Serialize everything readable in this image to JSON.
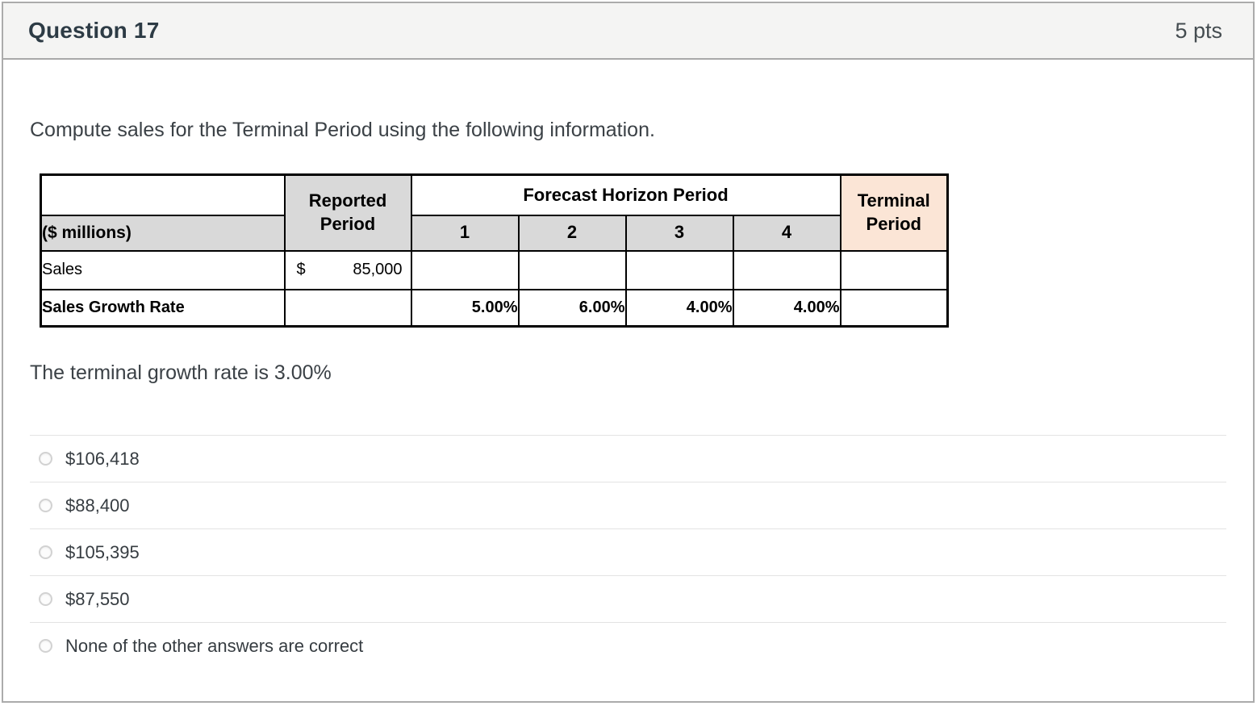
{
  "header": {
    "title": "Question 17",
    "points": "5 pts"
  },
  "question": {
    "prompt": "Compute sales for the Terminal Period using the following information.",
    "note": "The terminal growth rate is 3.00%"
  },
  "table": {
    "unit_label": "($ millions)",
    "reported_header": "Reported Period",
    "forecast_header": "Forecast Horizon Period",
    "terminal_header": "Terminal Period",
    "periods": [
      "1",
      "2",
      "3",
      "4"
    ],
    "sales_row": {
      "label": "Sales",
      "currency": "$",
      "reported": "85,000"
    },
    "growth_row": {
      "label": "Sales Growth Rate",
      "rates": [
        "5.00%",
        "6.00%",
        "4.00%",
        "4.00%"
      ]
    },
    "colors": {
      "header_gray": "#d9d9d9",
      "terminal_peach": "#fbe5d6"
    }
  },
  "options": [
    {
      "label": "$106,418"
    },
    {
      "label": "$88,400"
    },
    {
      "label": "$105,395"
    },
    {
      "label": "$87,550"
    },
    {
      "label": "None of the other answers are correct"
    }
  ]
}
